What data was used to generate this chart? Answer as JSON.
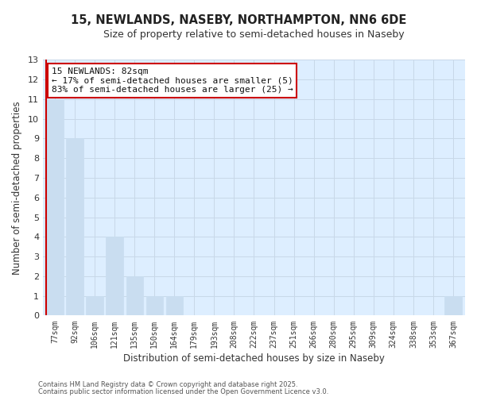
{
  "title_line1": "15, NEWLANDS, NASEBY, NORTHAMPTON, NN6 6DE",
  "title_line2": "Size of property relative to semi-detached houses in Naseby",
  "xlabel": "Distribution of semi-detached houses by size in Naseby",
  "ylabel": "Number of semi-detached properties",
  "categories": [
    "77sqm",
    "92sqm",
    "106sqm",
    "121sqm",
    "135sqm",
    "150sqm",
    "164sqm",
    "179sqm",
    "193sqm",
    "208sqm",
    "222sqm",
    "237sqm",
    "251sqm",
    "266sqm",
    "280sqm",
    "295sqm",
    "309sqm",
    "324sqm",
    "338sqm",
    "353sqm",
    "367sqm"
  ],
  "values": [
    11,
    9,
    1,
    4,
    2,
    1,
    1,
    0,
    0,
    0,
    0,
    0,
    0,
    0,
    0,
    0,
    0,
    0,
    0,
    0,
    1
  ],
  "bar_color": "#c9ddf0",
  "marker_color": "#cc0000",
  "ylim": [
    0,
    13
  ],
  "yticks": [
    0,
    1,
    2,
    3,
    4,
    5,
    6,
    7,
    8,
    9,
    10,
    11,
    12,
    13
  ],
  "annotation_title": "15 NEWLANDS: 82sqm",
  "annotation_line1": "← 17% of semi-detached houses are smaller (5)",
  "annotation_line2": "83% of semi-detached houses are larger (25) →",
  "annotation_box_color": "#ffffff",
  "annotation_box_edge_color": "#cc0000",
  "grid_color": "#c8d8e8",
  "plot_bg_color": "#ddeeff",
  "fig_bg_color": "#ffffff",
  "footer_line1": "Contains HM Land Registry data © Crown copyright and database right 2025.",
  "footer_line2": "Contains public sector information licensed under the Open Government Licence v3.0."
}
